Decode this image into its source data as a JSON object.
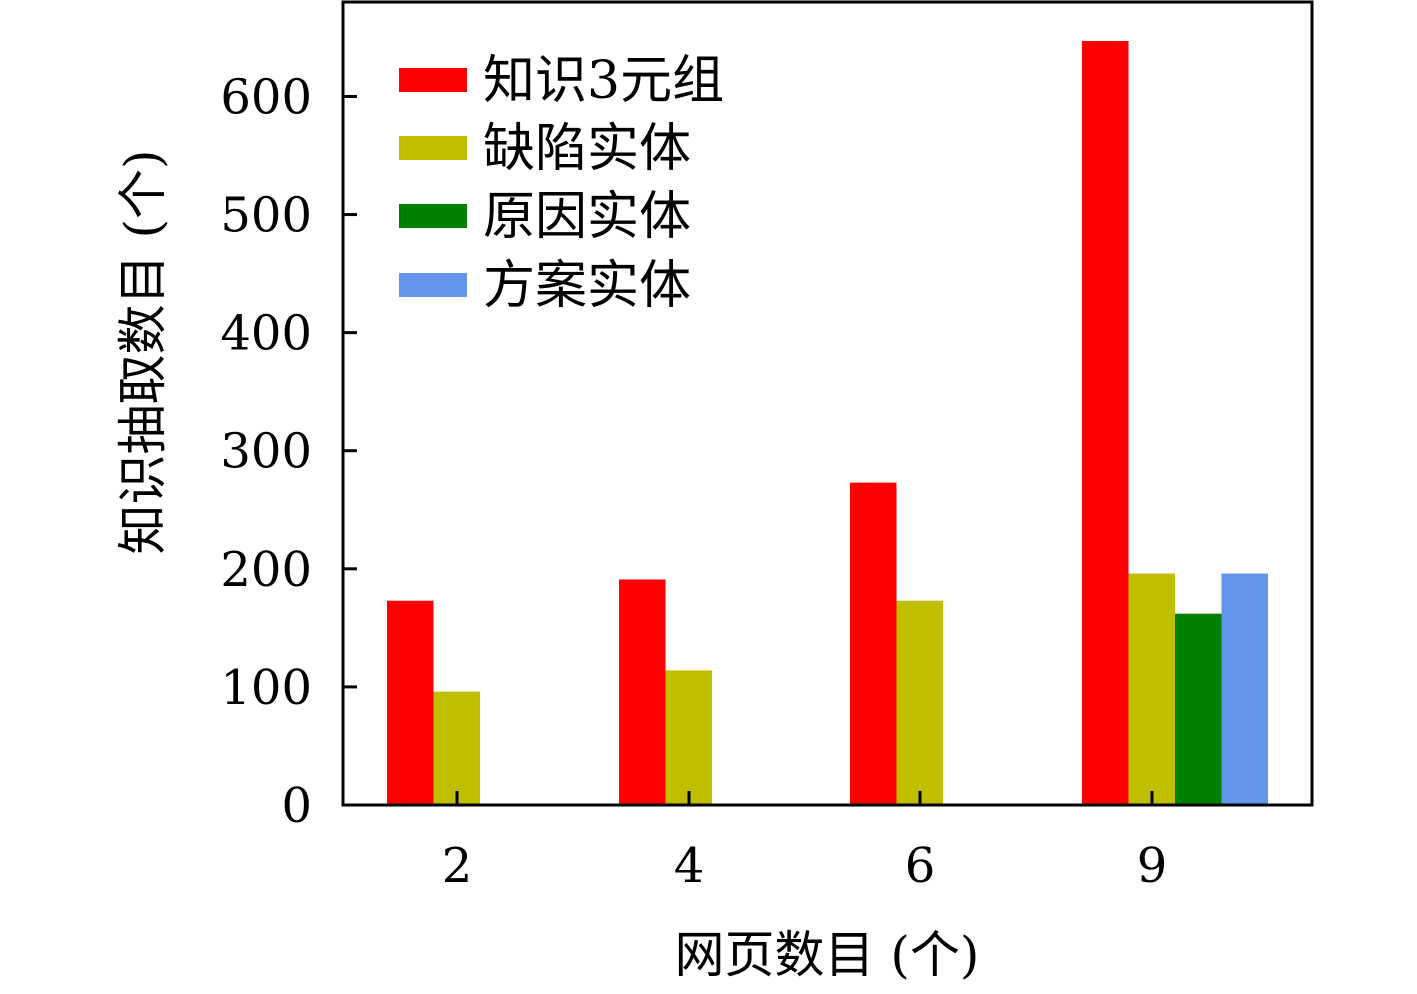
{
  "chart_data": {
    "type": "bar",
    "categories": [
      "2",
      "4",
      "6",
      "9"
    ],
    "series": [
      {
        "name": "知识3元组",
        "color": "#ff0000",
        "values": [
          173,
          191,
          273,
          647
        ]
      },
      {
        "name": "缺陷实体",
        "color": "#bfbf00",
        "values": [
          96,
          114,
          173,
          196
        ]
      },
      {
        "name": "原因实体",
        "color": "#008000",
        "values": [
          null,
          null,
          null,
          162
        ]
      },
      {
        "name": "方案实体",
        "color": "#6495ed",
        "values": [
          null,
          null,
          null,
          196
        ]
      }
    ],
    "xlabel": "网页数目 (个)",
    "ylabel": "知识抽取数目 (个)",
    "ylim": [
      0,
      680
    ],
    "yticks": [
      0,
      100,
      200,
      300,
      400,
      500,
      600
    ],
    "grid": false,
    "legend_position": "top-left"
  }
}
